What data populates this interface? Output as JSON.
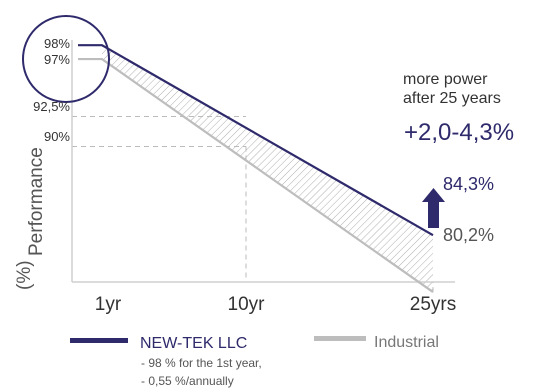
{
  "chart_data": {
    "type": "line",
    "title": "",
    "xlabel": "",
    "ylabel": "(%)Performance",
    "ylabel_parts": [
      "(%)",
      "Performance"
    ],
    "categories": [
      "1yr",
      "10yr",
      "25yrs"
    ],
    "x": [
      1,
      10,
      25
    ],
    "series": [
      {
        "name": "NEW-TEK LLC",
        "x": [
          0,
          1,
          25
        ],
        "values": [
          98,
          98,
          84.3
        ],
        "color": "#2e2a6b"
      },
      {
        "name": "Industrial",
        "x": [
          0,
          1,
          25
        ],
        "values": [
          97,
          97,
          80.2
        ],
        "color": "#bdbdbd"
      }
    ],
    "y_tick_labels": [
      {
        "value": 98,
        "label": "98%"
      },
      {
        "value": 97,
        "label": "97%"
      },
      {
        "value": 92.5,
        "label": "92,5%"
      },
      {
        "value": 90,
        "label": "90%"
      }
    ],
    "end_labels": [
      {
        "value": 84.3,
        "label": "84,3%",
        "color": "#2e2a6b"
      },
      {
        "value": 80.2,
        "label": "80,2%",
        "color": "#555555"
      }
    ],
    "annotation": {
      "line1": "more power",
      "line2": "after 25 years",
      "value": "+2,0-4,3%",
      "color": "#2e2a6b"
    },
    "legend": [
      {
        "name": "NEW-TEK LLC",
        "color": "#2e2a6b",
        "notes": [
          "- 98 % for the 1st year,",
          "- 0,55 %/annually"
        ]
      },
      {
        "name": "Industrial",
        "color": "#bdbdbd",
        "notes": []
      }
    ],
    "ylim": [
      77,
      101
    ],
    "legend_position": "bottom",
    "grid": false
  }
}
